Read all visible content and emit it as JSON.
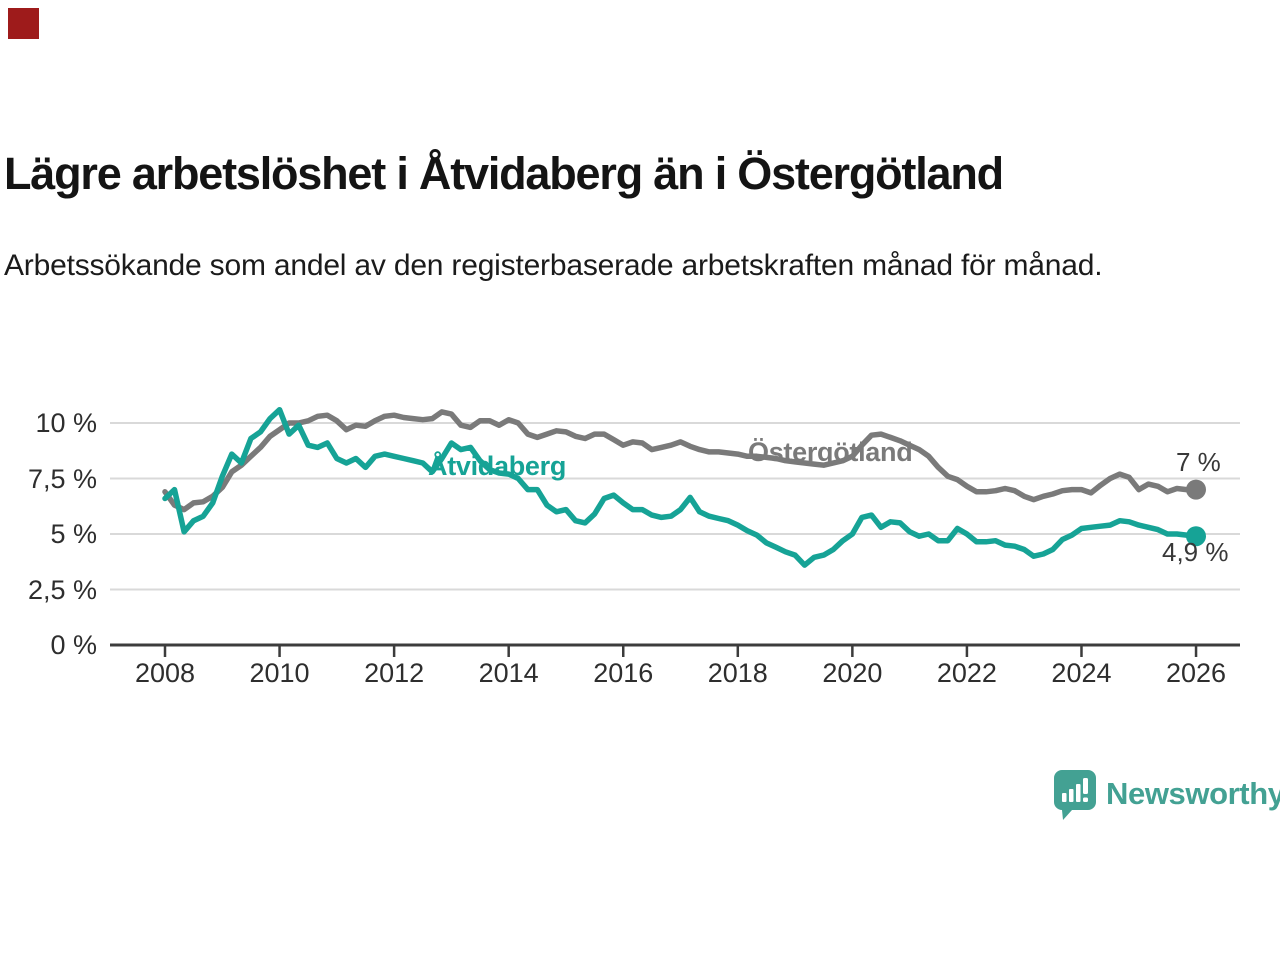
{
  "brand": {
    "corner_color": "#9e1b1b",
    "logo_text": "Newsworthy",
    "logo_color": "#43a193"
  },
  "chart_data": {
    "type": "line",
    "title": "Lägre arbetslöshet i Åtvidaberg än i Östergötland",
    "subtitle": "Arbetssökande som andel av den registerbaserade arbetskraften månad för månad.",
    "grid": true,
    "legend": "inline-labels",
    "x_start_year": 2008,
    "x_step_years": 0.16667,
    "xlim": [
      2007.9,
      2026.8
    ],
    "ylim": [
      0,
      11.2
    ],
    "x_tick_years": [
      2008,
      2010,
      2012,
      2014,
      2016,
      2018,
      2020,
      2022,
      2024,
      2026
    ],
    "x_tick_labels": [
      "2008",
      "2010",
      "2012",
      "2014",
      "2016",
      "2018",
      "2020",
      "2022",
      "2024",
      "2026"
    ],
    "y_ticks": [
      {
        "value": 0,
        "label": "0 %"
      },
      {
        "value": 2.5,
        "label": "2,5 %"
      },
      {
        "value": 5,
        "label": "5 %"
      },
      {
        "value": 7.5,
        "label": "7,5 %"
      },
      {
        "value": 10,
        "label": "10 %"
      }
    ],
    "series": [
      {
        "name": "Östergötland",
        "color": "#7a7a7a",
        "end_label": "7 %",
        "end_value": 7.0,
        "values": [
          6.9,
          6.3,
          6.1,
          6.4,
          6.45,
          6.7,
          7.1,
          7.8,
          8.1,
          8.5,
          8.9,
          9.4,
          9.7,
          10.0,
          10.0,
          10.1,
          10.3,
          10.35,
          10.1,
          9.7,
          9.9,
          9.85,
          10.1,
          10.3,
          10.35,
          10.25,
          10.2,
          10.15,
          10.2,
          10.5,
          10.4,
          9.9,
          9.8,
          10.1,
          10.1,
          9.9,
          10.15,
          10.0,
          9.5,
          9.35,
          9.5,
          9.65,
          9.6,
          9.4,
          9.3,
          9.5,
          9.5,
          9.25,
          9.0,
          9.15,
          9.1,
          8.8,
          8.9,
          9.0,
          9.15,
          8.95,
          8.8,
          8.7,
          8.7,
          8.65,
          8.6,
          8.5,
          8.5,
          8.45,
          8.4,
          8.3,
          8.25,
          8.2,
          8.15,
          8.1,
          8.2,
          8.3,
          8.5,
          9.0,
          9.45,
          9.5,
          9.35,
          9.2,
          9.0,
          8.8,
          8.5,
          8.0,
          7.6,
          7.45,
          7.15,
          6.9,
          6.9,
          6.95,
          7.05,
          6.95,
          6.7,
          6.55,
          6.7,
          6.8,
          6.95,
          7.0,
          7.0,
          6.85,
          7.2,
          7.5,
          7.7,
          7.55,
          7.0,
          7.25,
          7.15,
          6.9,
          7.05,
          7.0,
          7.0
        ]
      },
      {
        "name": "Åtvidaberg",
        "color": "#16a396",
        "end_label": "4,9 %",
        "end_value": 4.9,
        "values": [
          6.6,
          7.0,
          5.1,
          5.6,
          5.8,
          6.4,
          7.6,
          8.6,
          8.2,
          9.3,
          9.6,
          10.2,
          10.6,
          9.5,
          9.9,
          9.0,
          8.9,
          9.1,
          8.4,
          8.2,
          8.4,
          8.0,
          8.5,
          8.6,
          8.5,
          8.4,
          8.3,
          8.2,
          7.8,
          8.4,
          9.1,
          8.8,
          8.9,
          8.3,
          7.9,
          7.75,
          7.7,
          7.5,
          7.0,
          7.0,
          6.3,
          6.0,
          6.1,
          5.6,
          5.5,
          5.9,
          6.6,
          6.75,
          6.4,
          6.1,
          6.1,
          5.85,
          5.75,
          5.8,
          6.1,
          6.65,
          6.0,
          5.8,
          5.7,
          5.6,
          5.4,
          5.15,
          4.95,
          4.6,
          4.4,
          4.2,
          4.05,
          3.6,
          3.95,
          4.05,
          4.3,
          4.7,
          5.0,
          5.75,
          5.85,
          5.3,
          5.55,
          5.5,
          5.1,
          4.9,
          5.0,
          4.7,
          4.7,
          5.25,
          5.0,
          4.65,
          4.65,
          4.7,
          4.5,
          4.45,
          4.3,
          4.0,
          4.1,
          4.3,
          4.75,
          4.95,
          5.25,
          5.3,
          5.35,
          5.4,
          5.6,
          5.55,
          5.4,
          5.3,
          5.2,
          5.0,
          5.0,
          4.95,
          4.9
        ]
      }
    ]
  }
}
